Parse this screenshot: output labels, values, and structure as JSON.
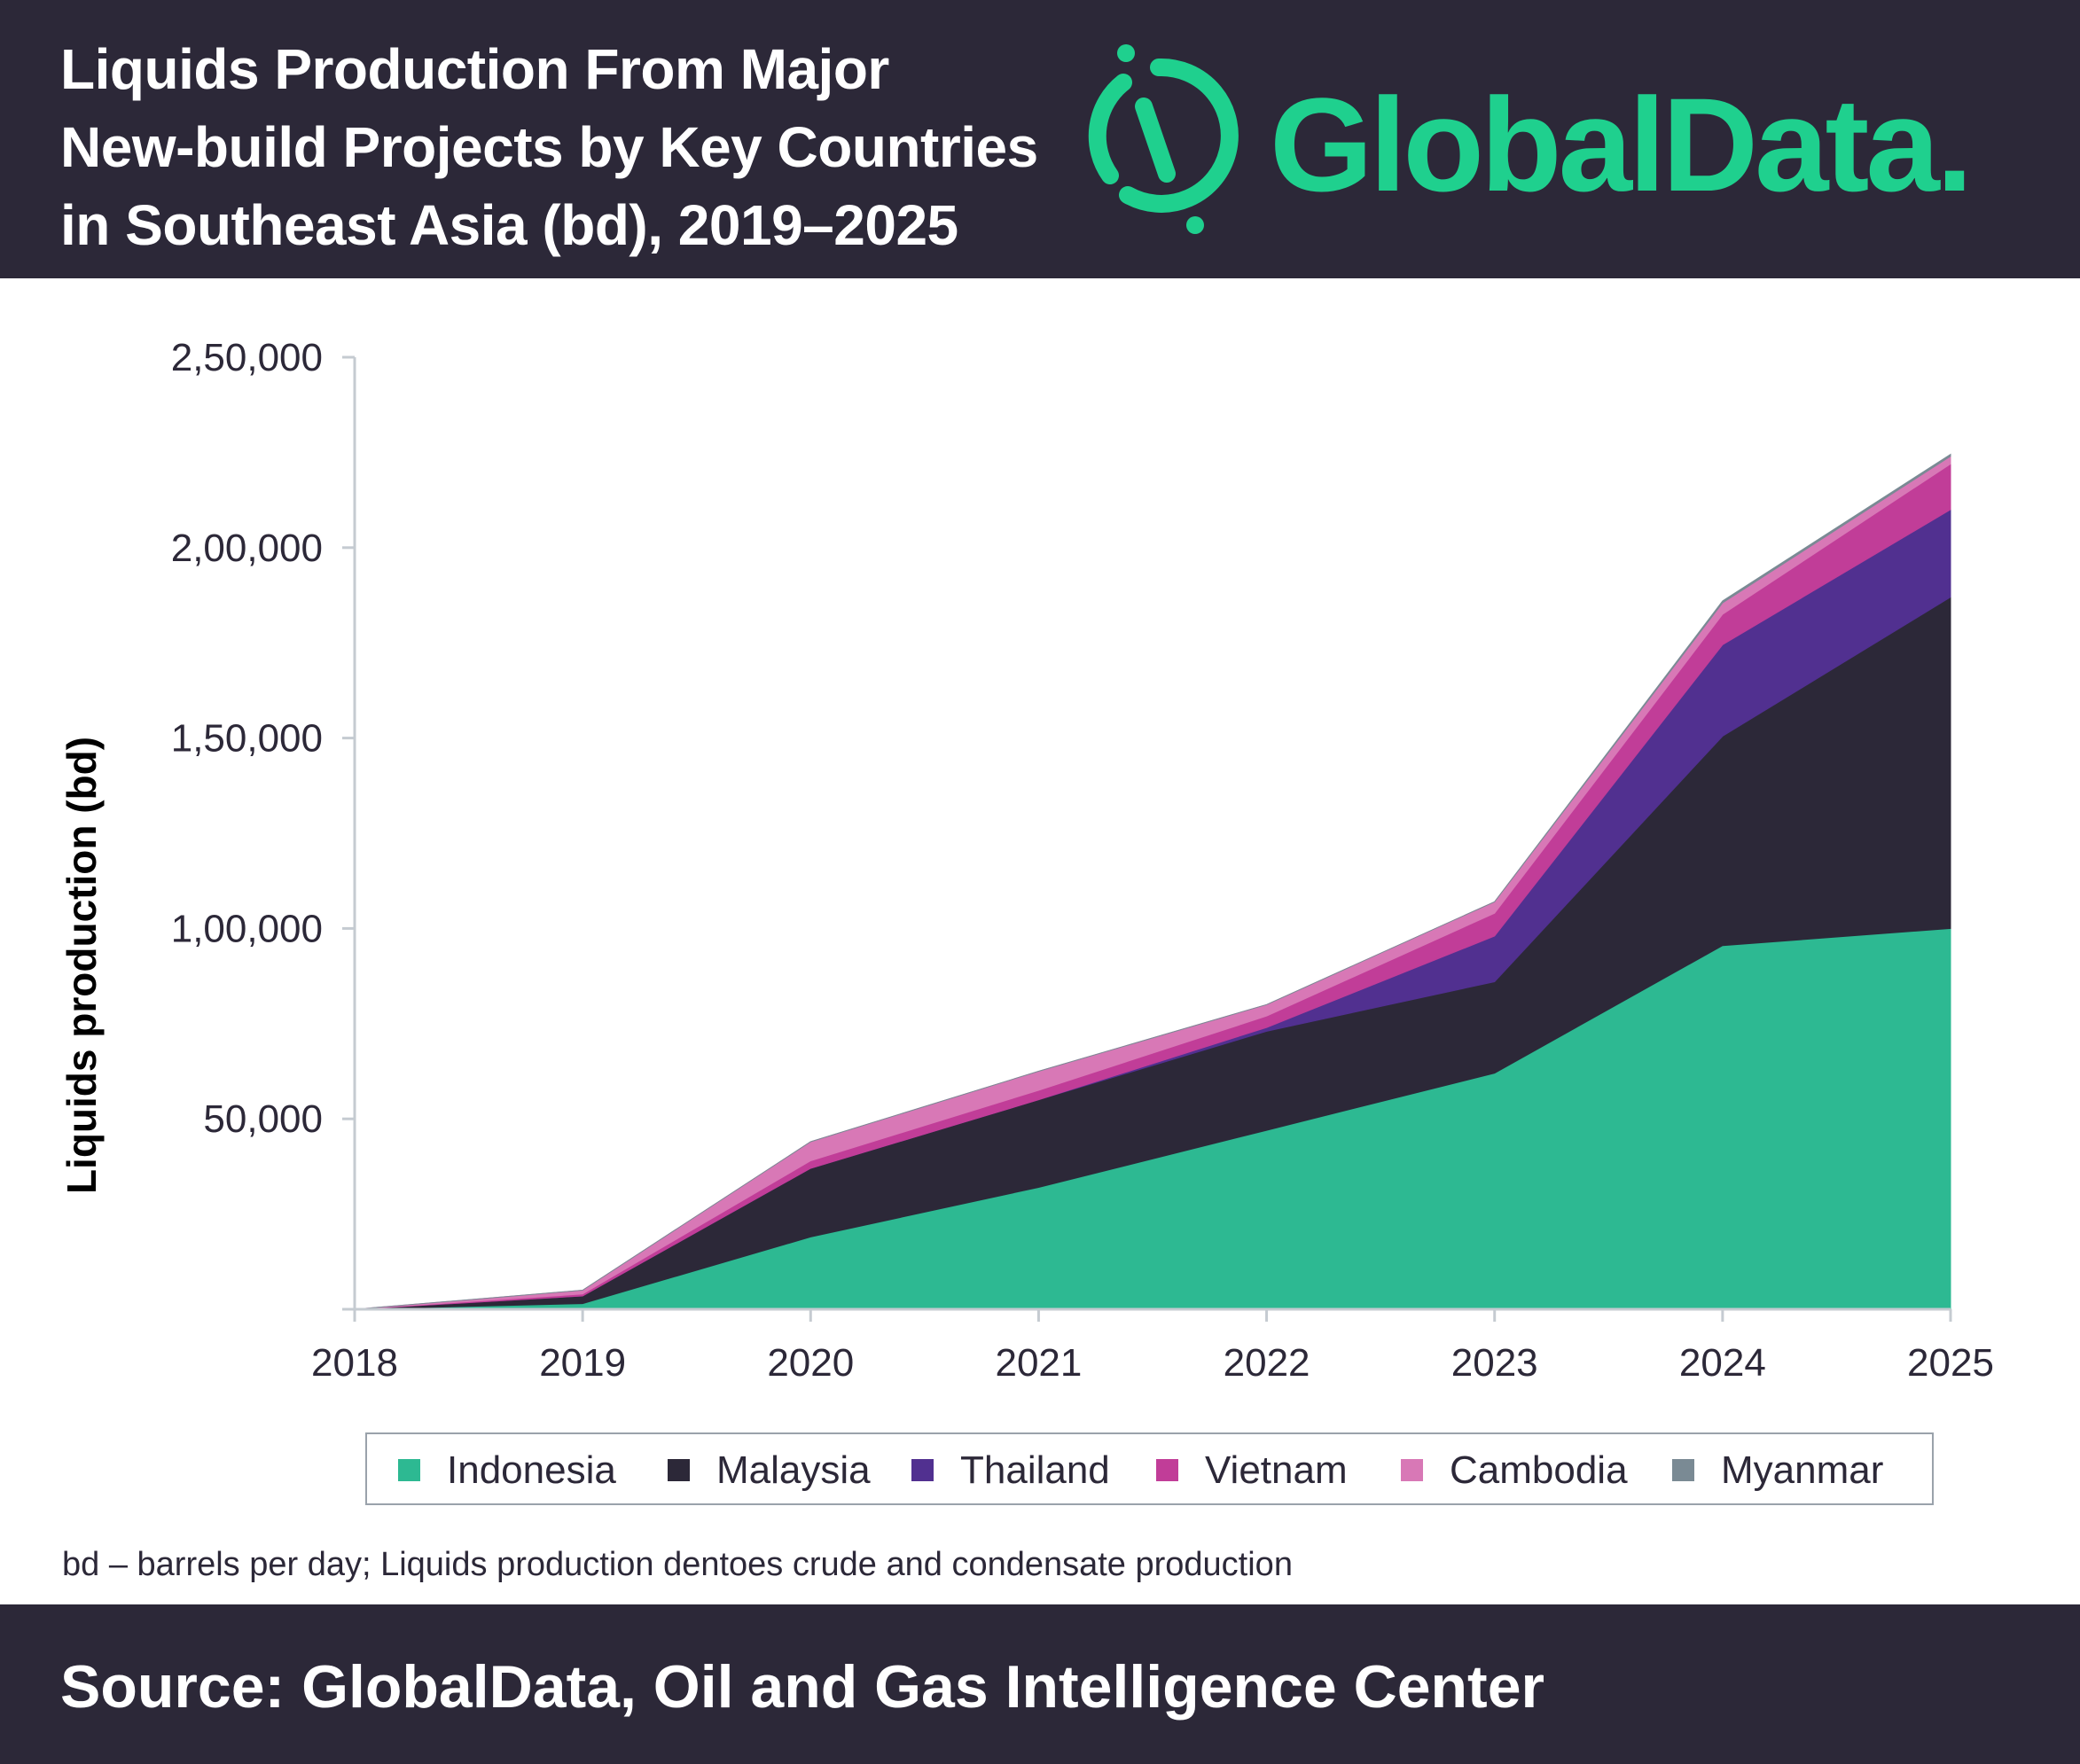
{
  "header": {
    "title_lines": [
      "Liquids Production From Major",
      "New-build Projects by Key Countries",
      "in Southeast Asia (bd), 2019–2025"
    ],
    "brand": "GlobalData.",
    "brand_color": "#1fd08e",
    "background_color": "#2c2838"
  },
  "chart_data": {
    "type": "area",
    "stacked": true,
    "title": "Liquids Production From Major New-build Projects by Key Countries in Southeast Asia (bd), 2019–2025",
    "xlabel": "",
    "ylabel": "Liquids production (bd)",
    "x": [
      "2018",
      "2019",
      "2020",
      "2021",
      "2022",
      "2023",
      "2024",
      "2025"
    ],
    "yticks": [
      {
        "value": 50000,
        "label": "50,000"
      },
      {
        "value": 100000,
        "label": "1,00,000"
      },
      {
        "value": 150000,
        "label": "1,50,000"
      },
      {
        "value": 200000,
        "label": "2,00,000"
      },
      {
        "value": 250000,
        "label": "2,50,000"
      }
    ],
    "ylim": [
      0,
      250000
    ],
    "grid": false,
    "legend_position": "bottom",
    "series": [
      {
        "name": "Indonesia",
        "color": "#2db992",
        "values": [
          0,
          1500,
          19000,
          32000,
          47000,
          62000,
          95500,
          100000
        ]
      },
      {
        "name": "Malaysia",
        "color": "#2c2838",
        "values": [
          0,
          2000,
          18000,
          23000,
          26000,
          24000,
          55000,
          87000
        ]
      },
      {
        "name": "Thailand",
        "color": "#513090",
        "values": [
          0,
          0,
          0,
          0,
          1000,
          12000,
          24000,
          23000
        ]
      },
      {
        "name": "Vietnam",
        "color": "#c13d98",
        "values": [
          0,
          500,
          2000,
          2500,
          3000,
          6000,
          8000,
          12000
        ]
      },
      {
        "name": "Cambodia",
        "color": "#d878b6",
        "values": [
          0,
          1000,
          5000,
          5000,
          3000,
          3000,
          3000,
          2000
        ]
      },
      {
        "name": "Myanmar",
        "color": "#7a8a94",
        "values": [
          0,
          0,
          0,
          0,
          0,
          0,
          500,
          500
        ]
      }
    ]
  },
  "footnote": "bd – barrels per day; Liquids production dentoes crude and condensate production",
  "source": "Source: GlobalData, Oil and Gas Intelligence Center"
}
